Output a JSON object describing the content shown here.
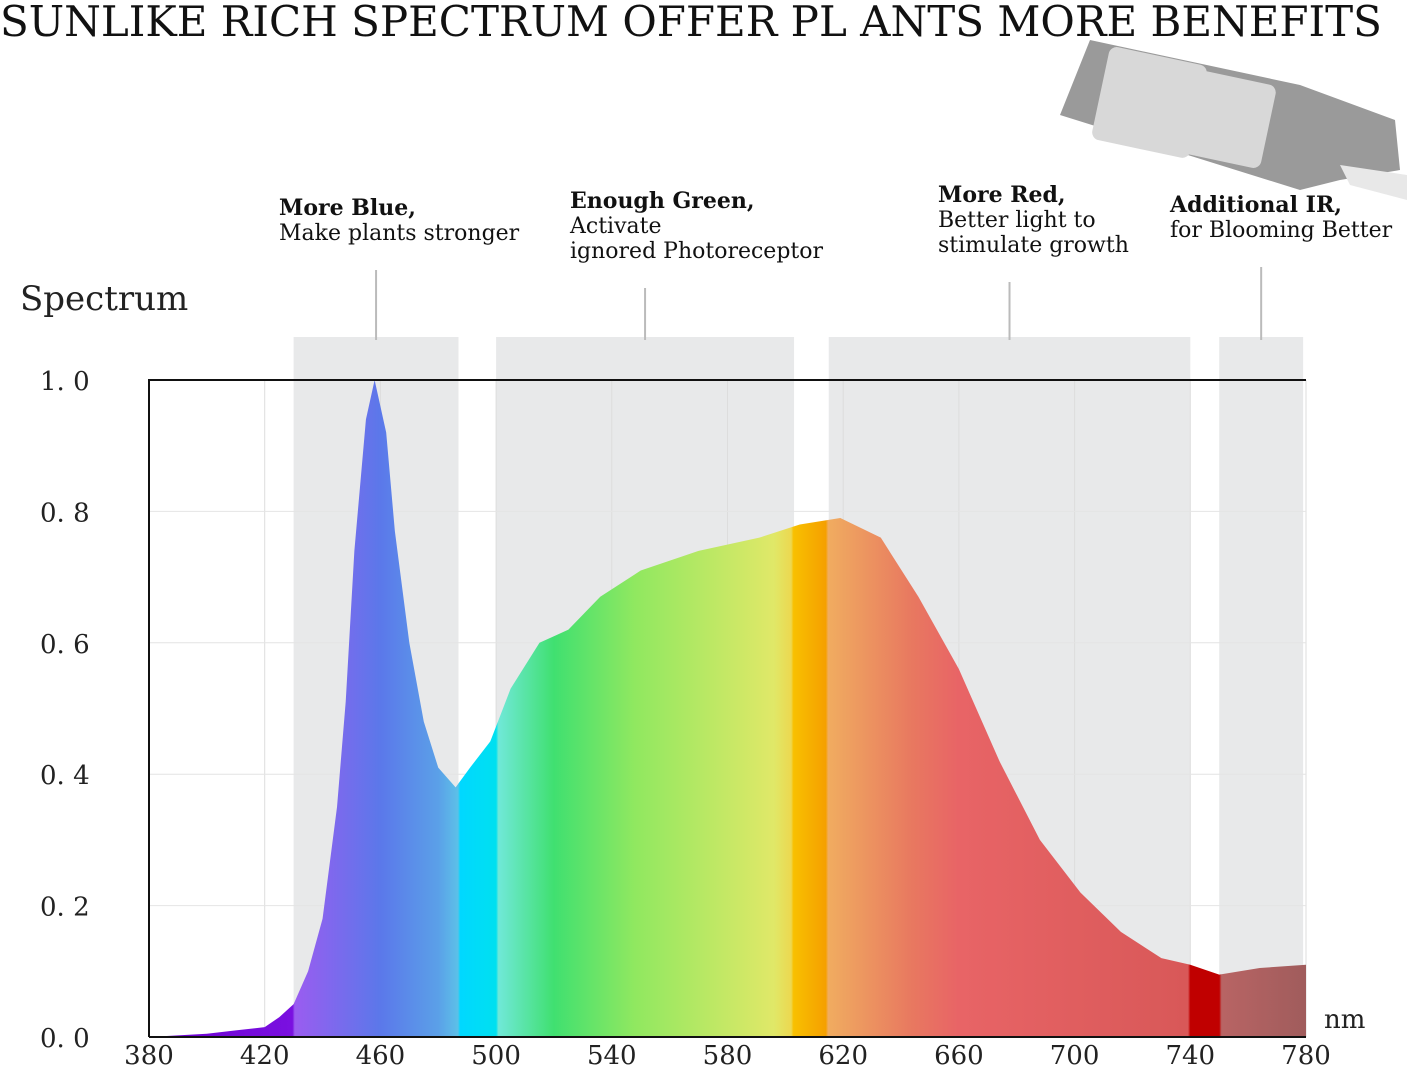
{
  "chart_data": {
    "type": "area",
    "title": "SUNLIKE RICH SPECTRUM OFFER PL ANTS MORE BENEFITS",
    "ylabel": "Spectrum",
    "xlabel": "nm",
    "x": [
      380,
      400,
      410,
      420,
      425,
      430,
      435,
      440,
      445,
      448,
      451,
      455,
      458,
      462,
      465,
      470,
      475,
      480,
      486,
      491,
      498,
      505,
      515,
      525,
      536,
      550,
      570,
      591,
      605,
      619,
      633,
      646,
      660,
      674,
      688,
      702,
      716,
      730,
      740,
      750,
      764,
      780
    ],
    "values": [
      0.0,
      0.005,
      0.01,
      0.015,
      0.03,
      0.05,
      0.1,
      0.18,
      0.35,
      0.51,
      0.74,
      0.94,
      1.0,
      0.92,
      0.77,
      0.6,
      0.48,
      0.41,
      0.38,
      0.41,
      0.45,
      0.53,
      0.6,
      0.62,
      0.67,
      0.71,
      0.74,
      0.76,
      0.78,
      0.79,
      0.76,
      0.67,
      0.56,
      0.42,
      0.3,
      0.22,
      0.16,
      0.12,
      0.11,
      0.095,
      0.105,
      0.11
    ],
    "xlim": [
      380,
      780
    ],
    "ylim": [
      0,
      1
    ],
    "xticks": [
      380,
      420,
      460,
      500,
      540,
      580,
      620,
      660,
      700,
      740,
      780
    ],
    "yticks": [
      {
        "value": 0,
        "label": "0. 0"
      },
      {
        "value": 0.2,
        "label": "0. 2"
      },
      {
        "value": 0.4,
        "label": "0. 4"
      },
      {
        "value": 0.6,
        "label": "0. 6"
      },
      {
        "value": 0.8,
        "label": "0. 8"
      },
      {
        "value": 1,
        "label": "1. 0"
      }
    ],
    "grid": true,
    "annotations": [
      {
        "title": "More Blue,",
        "lines": [
          "Make plants stronger"
        ],
        "range": [
          430,
          487
        ]
      },
      {
        "title": "Enough Green,",
        "lines": [
          "Activate",
          "ignored Photoreceptor"
        ],
        "range": [
          500,
          603
        ]
      },
      {
        "title": "More Red,",
        "lines": [
          "Better light to",
          "stimulate growth"
        ],
        "range": [
          615,
          740
        ]
      },
      {
        "title": "Additional IR,",
        "lines": [
          "for Blooming Better"
        ],
        "range": [
          750,
          779
        ]
      }
    ]
  }
}
